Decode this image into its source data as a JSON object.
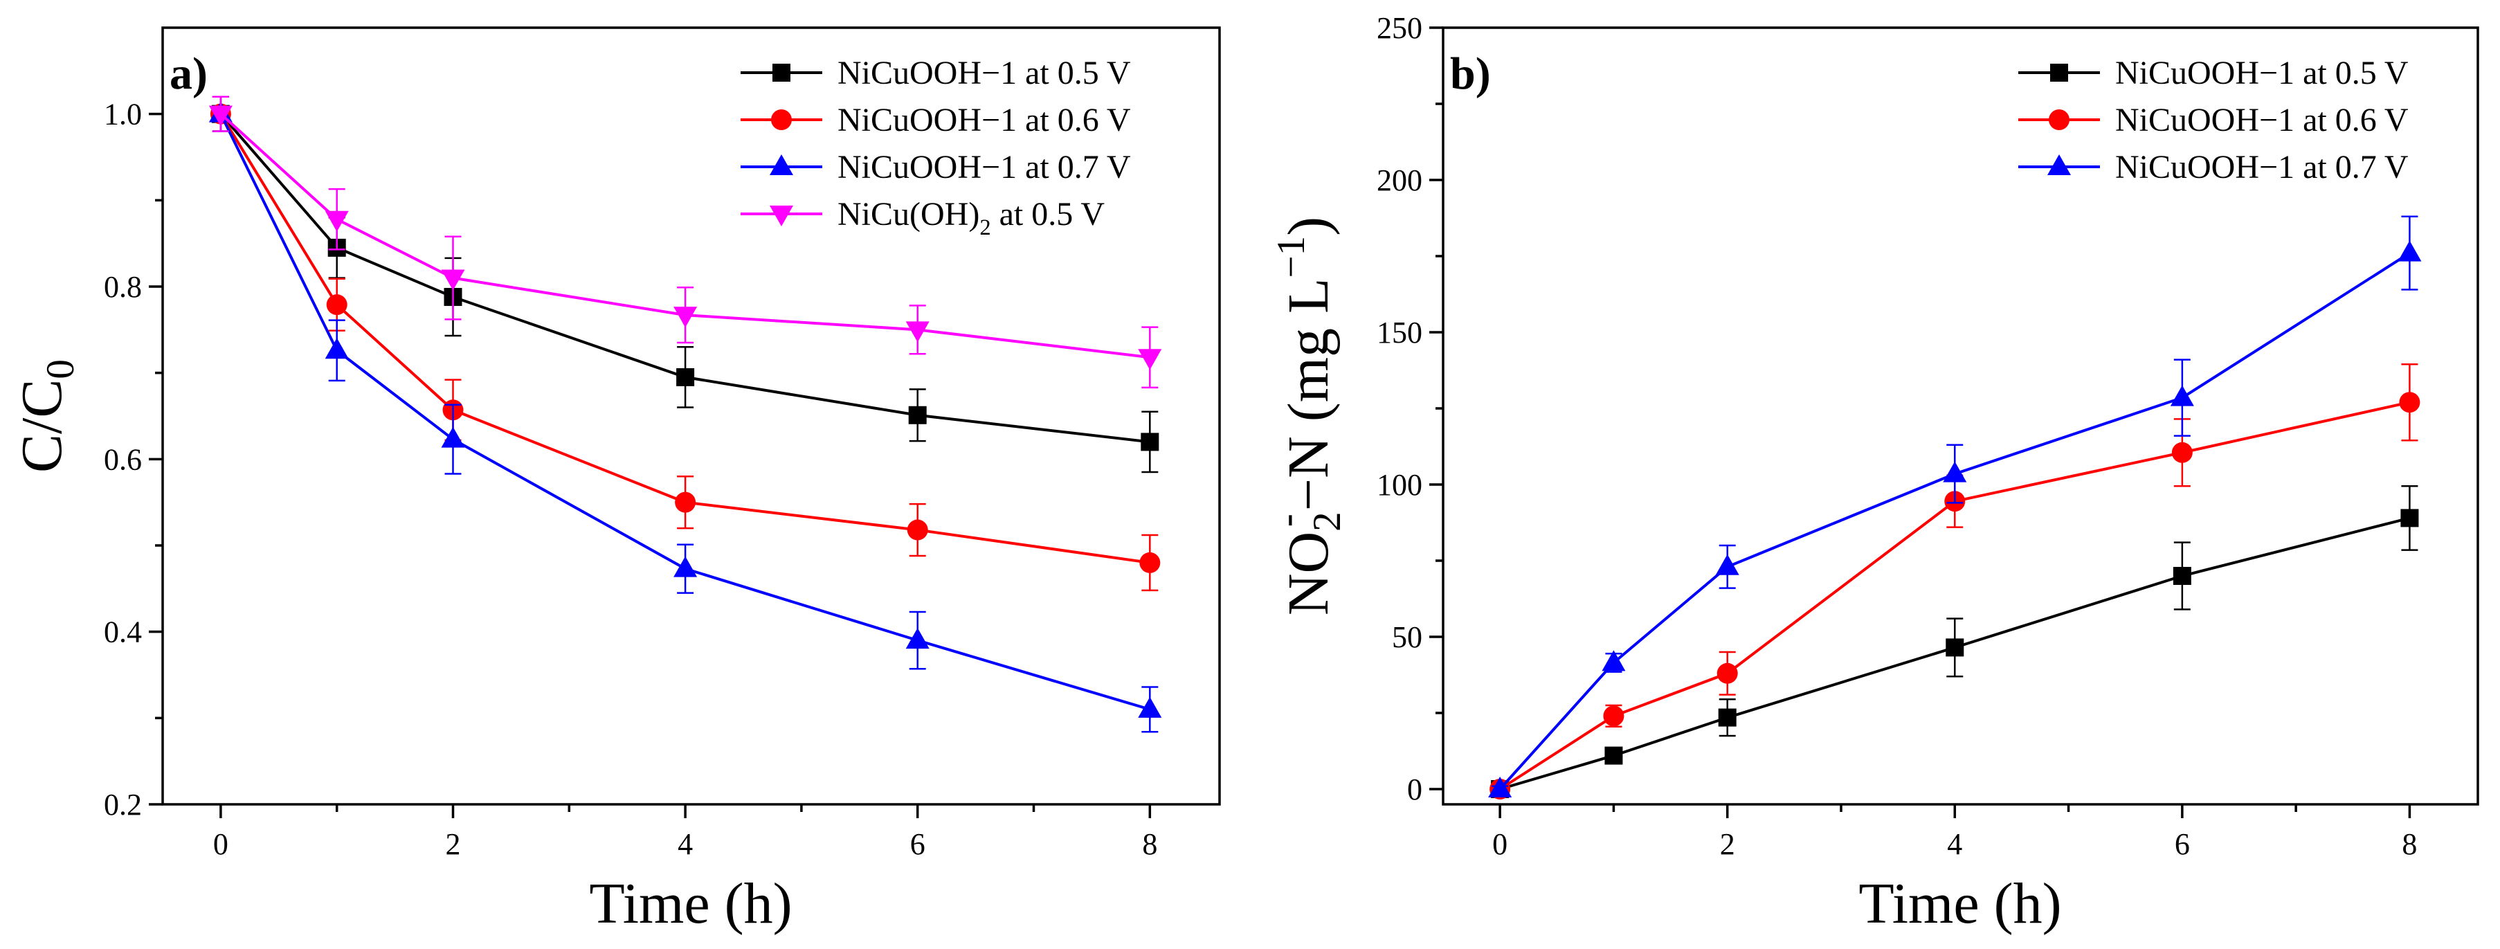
{
  "chart_data": [
    {
      "type": "line",
      "panel_label": "a)",
      "xlabel": "Time (h)",
      "ylabel": {
        "main": "C/C",
        "sub": "0"
      },
      "xlim": [
        -0.5,
        8.6
      ],
      "ylim": [
        0.2,
        1.1
      ],
      "xticks": [
        0,
        2,
        4,
        6,
        8
      ],
      "xtick_labels": [
        "0",
        "2",
        "4",
        "6",
        "8"
      ],
      "yticks": [
        0.2,
        0.4,
        0.6,
        0.8,
        1.0
      ],
      "ytick_labels": [
        "0.2",
        "0.4",
        "0.6",
        "0.8",
        "1.0"
      ],
      "legend_position": "top-right",
      "grid": false,
      "x": [
        0,
        1,
        2,
        4,
        6,
        8
      ],
      "series": [
        {
          "name": "NiCuOOH−1 at 0.5 V",
          "marker": "square",
          "color": "#000000",
          "values": [
            1.0,
            0.845,
            0.788,
            0.695,
            0.651,
            0.62
          ],
          "errors": [
            0.02,
            0.035,
            0.045,
            0.035,
            0.03,
            0.035
          ]
        },
        {
          "name": "NiCuOOH−1 at 0.6 V",
          "marker": "circle",
          "color": "#ff0000",
          "values": [
            1.0,
            0.779,
            0.657,
            0.55,
            0.518,
            0.48
          ],
          "errors": [
            0.02,
            0.03,
            0.035,
            0.03,
            0.03,
            0.032
          ]
        },
        {
          "name": "NiCuOOH−1 at 0.7 V",
          "marker": "triangle-up",
          "color": "#0000ff",
          "values": [
            1.0,
            0.726,
            0.623,
            0.473,
            0.39,
            0.31
          ],
          "errors": [
            0.02,
            0.035,
            0.04,
            0.028,
            0.033,
            0.026
          ]
        },
        {
          "name_parts": [
            "NiCu(OH)",
            "2",
            " at 0.5 V"
          ],
          "marker": "triangle-down",
          "color": "#ff00ff",
          "values": [
            1.0,
            0.878,
            0.81,
            0.767,
            0.75,
            0.718
          ],
          "errors": [
            0.02,
            0.035,
            0.048,
            0.032,
            0.028,
            0.035
          ]
        }
      ]
    },
    {
      "type": "line",
      "panel_label": "b)",
      "xlabel": "Time (h)",
      "ylabel": {
        "p1": "NO",
        "sub": "2",
        "sup": "-",
        "p2": "−N (mg L",
        "sup2": "−1",
        "p3": ")"
      },
      "xlim": [
        -0.5,
        8.6
      ],
      "ylim": [
        -5,
        250
      ],
      "xticks": [
        0,
        2,
        4,
        6,
        8
      ],
      "xtick_labels": [
        "0",
        "2",
        "4",
        "6",
        "8"
      ],
      "yticks": [
        0,
        50,
        100,
        150,
        200,
        250
      ],
      "ytick_labels": [
        "0",
        "50",
        "100",
        "150",
        "200",
        "250"
      ],
      "legend_position": "top-right",
      "grid": false,
      "x": [
        0,
        1,
        2,
        4,
        6,
        8
      ],
      "series": [
        {
          "name": "NiCuOOH−1 at 0.5 V",
          "marker": "square",
          "color": "#000000",
          "values": [
            0,
            11,
            23.5,
            46.5,
            70,
            89
          ],
          "errors": [
            1,
            2,
            6,
            9.5,
            11,
            10.5
          ]
        },
        {
          "name": "NiCuOOH−1 at 0.6 V",
          "marker": "circle",
          "color": "#ff0000",
          "values": [
            0,
            24,
            38,
            94.5,
            110.5,
            127
          ],
          "errors": [
            1,
            3.5,
            7,
            8.5,
            11,
            12.5
          ]
        },
        {
          "name": "NiCuOOH−1 at 0.7 V",
          "marker": "triangle-up",
          "color": "#0000ff",
          "values": [
            0,
            41.5,
            73,
            103.5,
            128.5,
            176
          ],
          "errors": [
            1,
            3,
            7,
            9.5,
            12.5,
            12
          ]
        }
      ]
    }
  ]
}
